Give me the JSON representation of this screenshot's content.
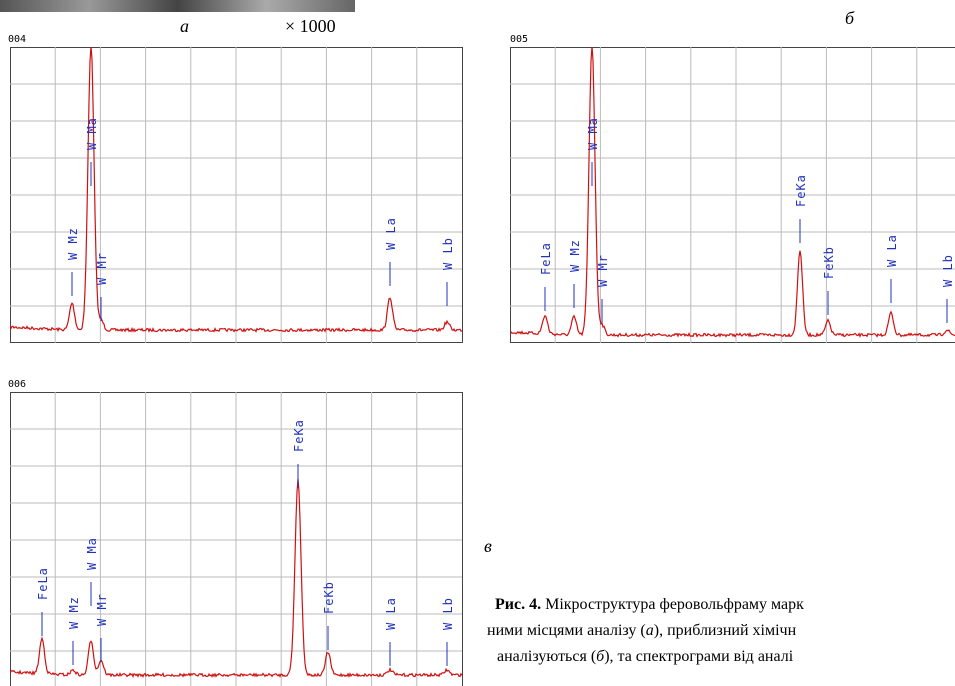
{
  "figure": {
    "label_a": "а",
    "magnification": "× 1000",
    "label_b": "б",
    "label_c": "в"
  },
  "panels": [
    {
      "id": "004",
      "peaks": [
        "W Mz",
        "W Ma",
        "W Mr",
        "W La",
        "W Lb"
      ]
    },
    {
      "id": "005",
      "peaks": [
        "FeLa",
        "W Mz",
        "W Ma",
        "W Mr",
        "FeKa",
        "FeKb",
        "W La",
        "W Lb"
      ]
    },
    {
      "id": "006",
      "peaks": [
        "FeLa",
        "W Mz",
        "W Ma",
        "W Mr",
        "FeKa",
        "FeKb",
        "W La",
        "W Lb"
      ]
    }
  ],
  "caption": {
    "line1": [
      "Рис. 4.",
      " Мікроструктура феровольфраму марк"
    ],
    "line2": [
      "ними місцями аналізу (",
      "а",
      "), приблизний хімічн"
    ],
    "line3": [
      "аналізуються (",
      "б",
      "), та спектрограми від аналі"
    ]
  }
}
